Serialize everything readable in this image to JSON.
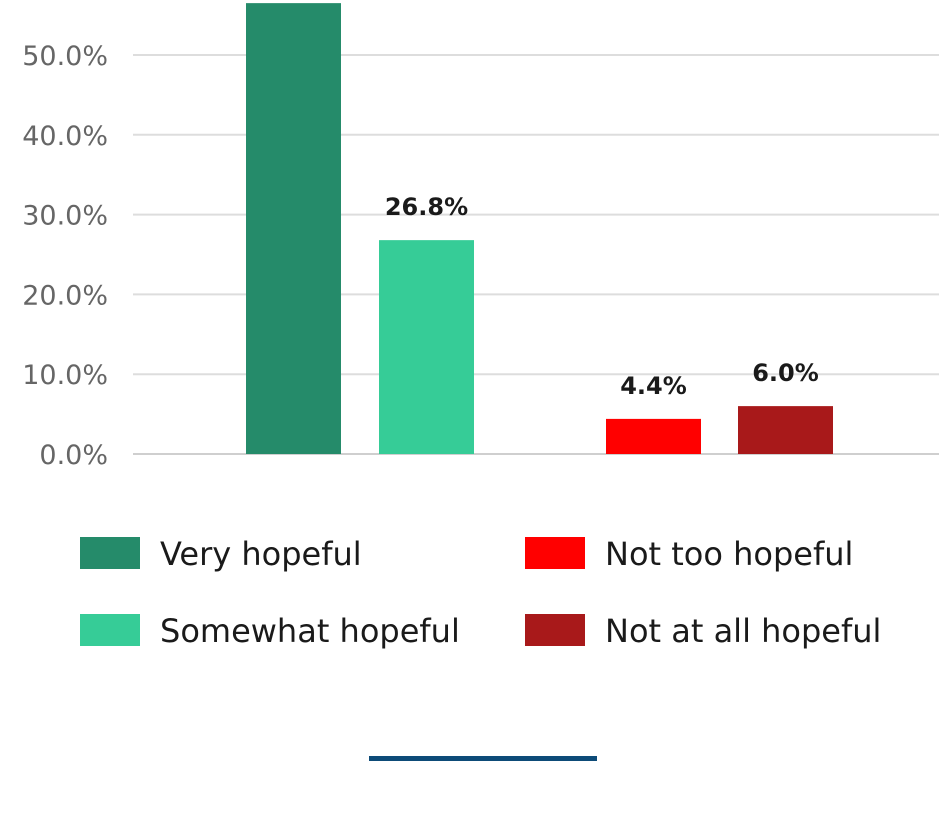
{
  "chart_data": {
    "type": "bar",
    "categories": [
      "Very hopeful",
      "Somewhat hopeful",
      "Not too hopeful",
      "Not at all hopeful"
    ],
    "values": [
      56.5,
      26.8,
      4.4,
      6.0
    ],
    "data_labels": [
      "",
      "26.8%",
      "4.4%",
      "6.0%"
    ],
    "colors": [
      "#258b6a",
      "#36cc97",
      "#ff0000",
      "#a8191a"
    ],
    "yticks": [
      "0.0%",
      "10.0%",
      "20.0%",
      "30.0%",
      "40.0%",
      "50.0%"
    ],
    "ytick_values": [
      0,
      10,
      20,
      30,
      40,
      50
    ],
    "ylim": [
      0,
      57
    ],
    "grid": true,
    "legend": {
      "placement": "bottom",
      "entries": [
        "Very hopeful",
        "Not too hopeful",
        "Somewhat hopeful",
        "Not at all hopeful"
      ],
      "colors": [
        "#258b6a",
        "#ff0000",
        "#36cc97",
        "#a8191a"
      ]
    },
    "title": "",
    "xlabel": "",
    "ylabel": ""
  },
  "accent_color": "#0d4b78"
}
